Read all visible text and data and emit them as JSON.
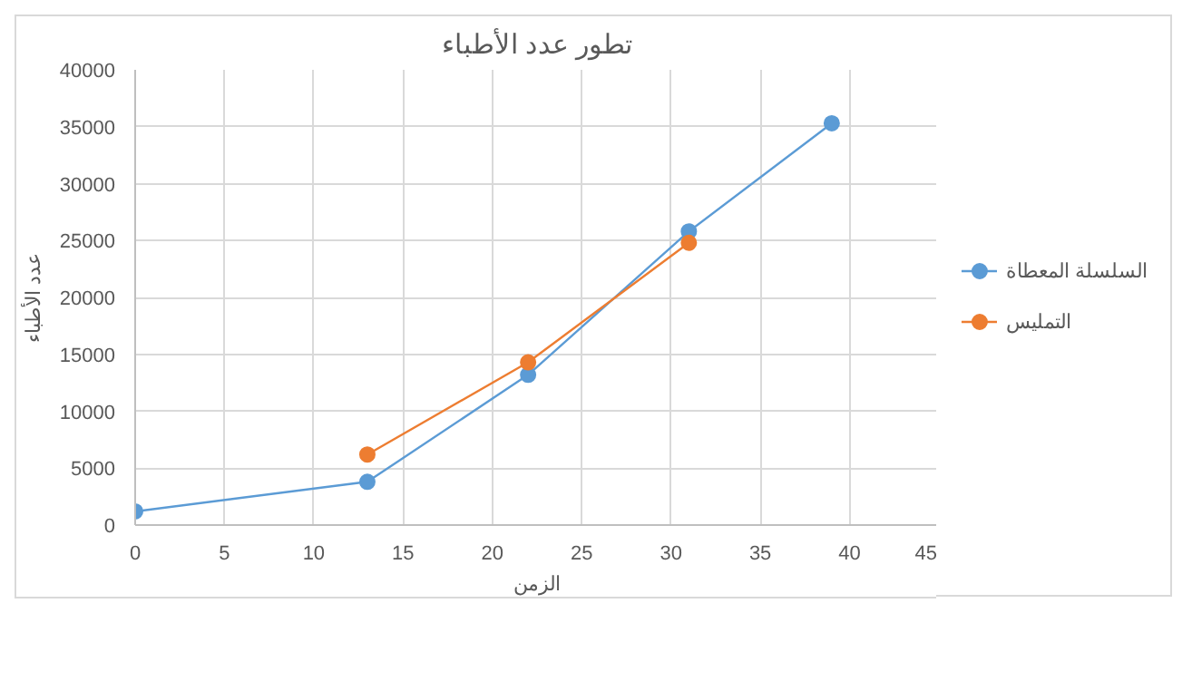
{
  "chart_data": {
    "type": "line",
    "title": "تطور عدد الأطباء",
    "xlabel": "الزمن",
    "ylabel": "عدد الأطباء",
    "xlim": [
      0,
      45
    ],
    "xticks": [
      0,
      5,
      10,
      15,
      20,
      25,
      30,
      35,
      40,
      45
    ],
    "ylim": [
      0,
      40000
    ],
    "yticks": [
      0,
      5000,
      10000,
      15000,
      20000,
      25000,
      30000,
      35000,
      40000
    ],
    "grid": true,
    "legend": "right",
    "marker": "circle",
    "line_style": "solid",
    "series": [
      {
        "name": "السلسلة المعطاة",
        "color": "#5b9bd5",
        "x": [
          0,
          13,
          22,
          31,
          39
        ],
        "values": [
          1200,
          3800,
          13200,
          25800,
          35300
        ]
      },
      {
        "name": "التمليس",
        "color": "#ed7d31",
        "x": [
          13,
          22,
          31
        ],
        "values": [
          6200,
          14300,
          24800
        ]
      }
    ]
  }
}
